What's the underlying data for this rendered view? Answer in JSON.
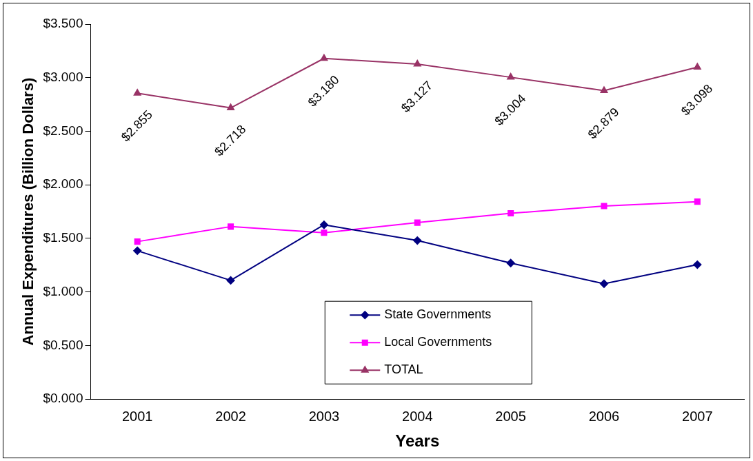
{
  "chart_data": {
    "type": "line",
    "xlabel": "Years",
    "ylabel": "Annual Expenditures (Billion Dollars)",
    "categories": [
      "2001",
      "2002",
      "2003",
      "2004",
      "2005",
      "2006",
      "2007"
    ],
    "series": [
      {
        "name": "State Governments",
        "color": "#000080",
        "marker": "diamond",
        "values": [
          1.385,
          1.108,
          1.627,
          1.48,
          1.27,
          1.077,
          1.255
        ]
      },
      {
        "name": "Local Governments",
        "color": "#ff00ff",
        "marker": "square",
        "values": [
          1.47,
          1.61,
          1.553,
          1.647,
          1.734,
          1.802,
          1.843
        ]
      },
      {
        "name": "TOTAL",
        "color": "#993366",
        "marker": "triangle",
        "values": [
          2.855,
          2.718,
          3.18,
          3.127,
          3.004,
          2.879,
          3.098
        ],
        "value_labels": [
          "$2.855",
          "$2.718",
          "$3.180",
          "$3.127",
          "$3.004",
          "$2.879",
          "$3.098"
        ]
      }
    ],
    "ylim": [
      0,
      3.5
    ],
    "yticks": [
      {
        "value": 0,
        "label": "$0.000"
      },
      {
        "value": 0.5,
        "label": "$0.500"
      },
      {
        "value": 1,
        "label": "$1.000"
      },
      {
        "value": 1.5,
        "label": "$1.500"
      },
      {
        "value": 2,
        "label": "$2.000"
      },
      {
        "value": 2.5,
        "label": "$2.500"
      },
      {
        "value": 3,
        "label": "$3.000"
      },
      {
        "value": 3.5,
        "label": "$3.500"
      }
    ],
    "grid": false,
    "legend": "bottom",
    "line_style": "solid"
  }
}
